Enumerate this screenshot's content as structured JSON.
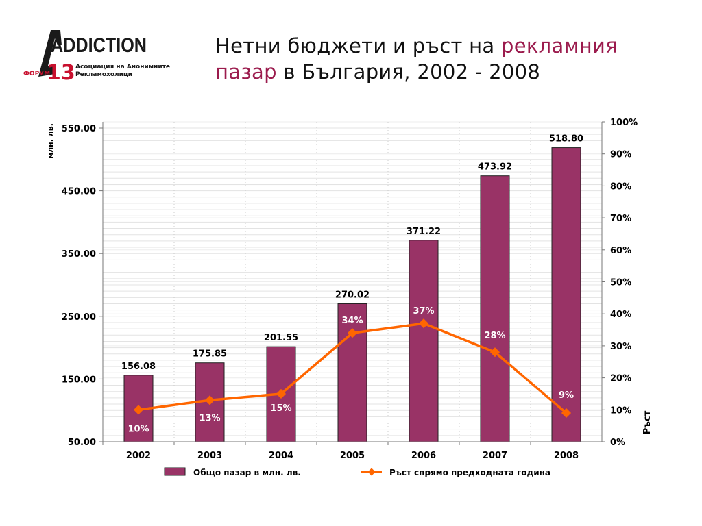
{
  "logo": {
    "brand": "ADDICTION",
    "forum_label": "ФОРУМ",
    "forum_number": "13",
    "org_line1": "Асоциация на Анонимните",
    "org_line2": "Рекламохолици"
  },
  "slide_title": {
    "part1": "Нетни бюджети и ръст на ",
    "accent1": "рекламния",
    "accent2": "пазар",
    "part2": " в България, 2002 - 2008"
  },
  "colors": {
    "bar": "#993366",
    "line": "#ff6600",
    "title_accent": "#9b1b4d"
  },
  "chart_data": {
    "type": "bar",
    "categories": [
      "2002",
      "2003",
      "2004",
      "2005",
      "2006",
      "2007",
      "2008"
    ],
    "series": [
      {
        "name": "Общо пазар в млн. лв.",
        "type": "bar",
        "axis": "left",
        "values": [
          156.08,
          175.85,
          201.55,
          270.02,
          371.22,
          473.92,
          518.8
        ],
        "labels": [
          "156.08",
          "175.85",
          "201.55",
          "270.02",
          "371.22",
          "473.92",
          "518.80"
        ]
      },
      {
        "name": "Ръст спрямо предходната година",
        "type": "line",
        "axis": "right",
        "values": [
          10,
          13,
          15,
          34,
          37,
          28,
          9
        ],
        "labels": [
          "10%",
          "13%",
          "15%",
          "34%",
          "37%",
          "28%",
          "9%"
        ]
      }
    ],
    "ylabel": "млн. лв.",
    "y2label": "Ръст",
    "ylim": [
      50,
      550
    ],
    "yticks": [
      "550.00",
      "450.00",
      "350.00",
      "250.00",
      "150.00",
      "50.00"
    ],
    "y2lim": [
      0,
      100
    ],
    "y2ticks": [
      "100%",
      "90%",
      "80%",
      "70%",
      "60%",
      "50%",
      "40%",
      "30%",
      "20%",
      "10%",
      "0%"
    ],
    "grid": true,
    "legend_position": "bottom"
  }
}
